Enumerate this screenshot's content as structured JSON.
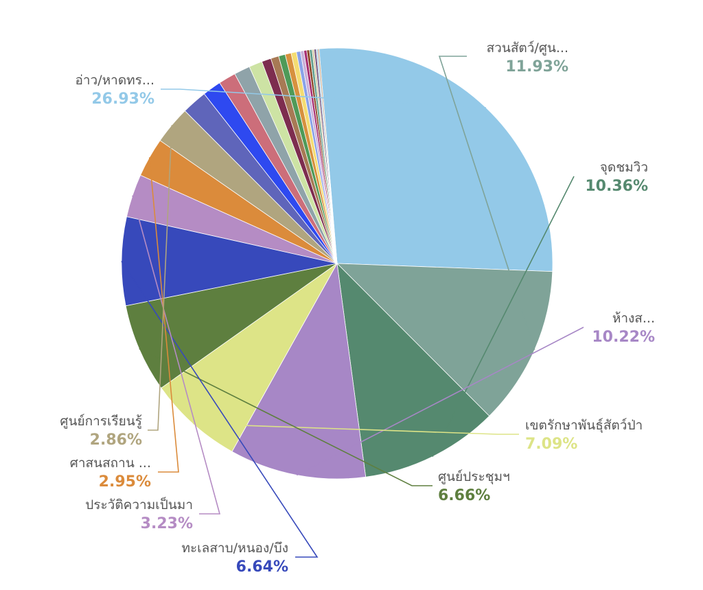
{
  "chart_data": {
    "type": "pie",
    "labeled_slices": [
      {
        "label": "อ่าว/หาดทร...",
        "percent_label": "26.93%",
        "value": 26.93,
        "color": "#93c9e8"
      },
      {
        "label": "สวนสัตว์/ศูน...",
        "percent_label": "11.93%",
        "value": 11.93,
        "color": "#7fa398"
      },
      {
        "label": "จุดชมวิว",
        "percent_label": "10.36%",
        "value": 10.36,
        "color": "#55896f"
      },
      {
        "label": "ห้างส...",
        "percent_label": "10.22%",
        "value": 10.22,
        "color": "#a787c6"
      },
      {
        "label": "เขตรักษาพันธุ์สัตว์ป่า",
        "percent_label": "7.09%",
        "value": 7.09,
        "color": "#dde487"
      },
      {
        "label": "ศูนย์ประชุมฯ",
        "percent_label": "6.66%",
        "value": 6.66,
        "color": "#5e7f3f"
      },
      {
        "label": "ทะเลสาบ/หนอง/บึง",
        "percent_label": "6.64%",
        "value": 6.64,
        "color": "#3749bb"
      },
      {
        "label": "ประวัติความเป็นมา",
        "percent_label": "3.23%",
        "value": 3.23,
        "color": "#b58cc4"
      },
      {
        "label": "ศาสนสถาน ...",
        "percent_label": "2.95%",
        "value": 2.95,
        "color": "#db8b3b"
      },
      {
        "label": "ศูนย์การเรียนรู้",
        "percent_label": "2.86%",
        "value": 2.86,
        "color": "#b0a57f"
      }
    ],
    "unlabeled_slices": [
      {
        "value": 1.9,
        "color": "#5f65ba"
      },
      {
        "value": 1.4,
        "color": "#2e49f0"
      },
      {
        "value": 1.3,
        "color": "#cc6e7a"
      },
      {
        "value": 1.2,
        "color": "#8fa3a9"
      },
      {
        "value": 1.0,
        "color": "#cde3a4"
      },
      {
        "value": 0.7,
        "color": "#7d2d4f"
      },
      {
        "value": 0.6,
        "color": "#a77a55"
      },
      {
        "value": 0.5,
        "color": "#4f9a58"
      },
      {
        "value": 0.45,
        "color": "#d7913e"
      },
      {
        "value": 0.4,
        "color": "#f4dc72"
      },
      {
        "value": 0.3,
        "color": "#8aa2e8"
      },
      {
        "value": 0.25,
        "color": "#c9b0d9"
      },
      {
        "value": 0.22,
        "color": "#a72f73"
      },
      {
        "value": 0.2,
        "color": "#8d4a2a"
      },
      {
        "value": 0.2,
        "color": "#62a08f"
      },
      {
        "value": 0.15,
        "color": "#d5c9a4"
      },
      {
        "value": 0.15,
        "color": "#6b4c7a"
      },
      {
        "value": 0.12,
        "color": "#a6cbe4"
      },
      {
        "value": 0.1,
        "color": "#c7a07a"
      }
    ]
  }
}
